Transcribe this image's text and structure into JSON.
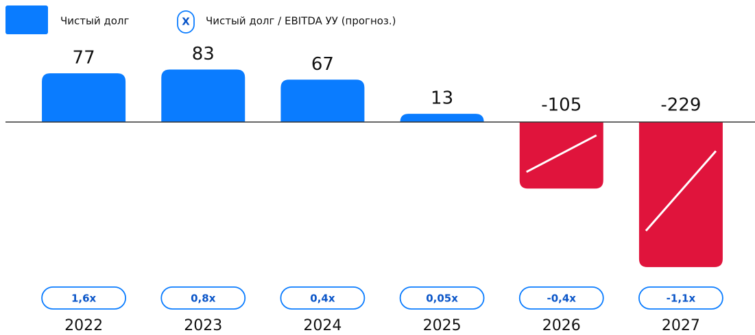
{
  "chart_data": {
    "type": "bar",
    "categories": [
      "2022",
      "2023",
      "2024",
      "2025",
      "2026",
      "2027"
    ],
    "series": [
      {
        "name": "Чистый долг",
        "color": "#0a7cff",
        "negative_color": "#e0143c",
        "values": [
          77,
          83,
          67,
          13,
          -105,
          -229
        ]
      },
      {
        "name": "Чистый долг / EBITDA УУ (прогноз.)",
        "marker_label": "X",
        "color": "#0a7cff",
        "values": [
          1.6,
          0.8,
          0.4,
          0.05,
          -0.4,
          -1.1
        ],
        "value_labels": [
          "1,6x",
          "0,8x",
          "0,4x",
          "0,05x",
          "-0,4x",
          "-1,1x"
        ]
      }
    ],
    "ylim": [
      -240,
      90
    ]
  }
}
